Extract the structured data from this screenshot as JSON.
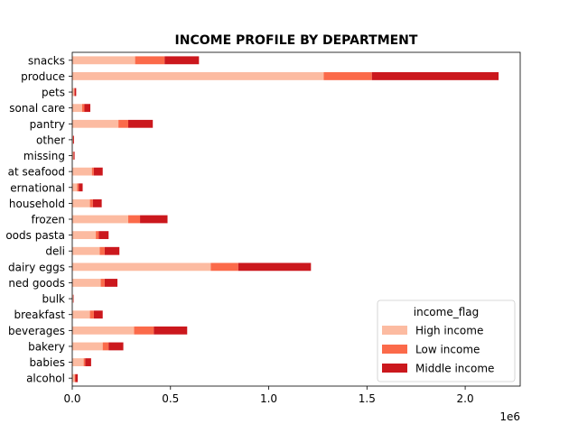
{
  "chart_data": {
    "type": "bar",
    "orientation": "horizontal",
    "stacked": true,
    "title": "INCOME PROFILE BY DEPARTMENT",
    "xlabel": "",
    "ylabel": "",
    "x_offset_label": "1e6",
    "xlim": [
      0,
      2.28
    ],
    "xticks": [
      0,
      0.5,
      1.0,
      1.5,
      2.0
    ],
    "xtick_labels": [
      "0.0",
      "0.5",
      "1.0",
      "1.5",
      "2.0"
    ],
    "grid": false,
    "legend": {
      "title": "income_flag",
      "position": "lower-right"
    },
    "categories": [
      "alcohol",
      "babies",
      "bakery",
      "beverages",
      "breakfast",
      "bulk",
      "canned goods",
      "dairy eggs",
      "deli",
      "dry goods pasta",
      "frozen",
      "household",
      "international",
      "meat seafood",
      "missing",
      "other",
      "pantry",
      "personal care",
      "pets",
      "produce",
      "snacks"
    ],
    "category_labels": [
      "alcohol",
      "babies",
      "bakery",
      "beverages",
      "breakfast",
      "bulk",
      "ned goods",
      "dairy eggs",
      "deli",
      "oods pasta",
      "frozen",
      "household",
      "ernational",
      "at seafood",
      "missing",
      "other",
      "pantry",
      "sonal care",
      "pets",
      "produce",
      "snacks"
    ],
    "series": [
      {
        "name": "High income",
        "color": "#fcbba1",
        "values": [
          0.012,
          0.058,
          0.155,
          0.315,
          0.09,
          0.004,
          0.145,
          0.705,
          0.14,
          0.12,
          0.285,
          0.09,
          0.025,
          0.1,
          0.006,
          0.004,
          0.235,
          0.05,
          0.01,
          1.28,
          0.32
        ]
      },
      {
        "name": "Low income",
        "color": "#fb6a4a",
        "values": [
          0.004,
          0.008,
          0.03,
          0.1,
          0.02,
          0.001,
          0.02,
          0.14,
          0.025,
          0.015,
          0.06,
          0.015,
          0.008,
          0.01,
          0.001,
          0.001,
          0.05,
          0.012,
          0.002,
          0.245,
          0.15
        ]
      },
      {
        "name": "Middle income",
        "color": "#cb181d",
        "values": [
          0.012,
          0.03,
          0.075,
          0.17,
          0.045,
          0.002,
          0.065,
          0.37,
          0.075,
          0.05,
          0.14,
          0.045,
          0.02,
          0.045,
          0.005,
          0.004,
          0.125,
          0.03,
          0.008,
          0.645,
          0.175
        ]
      }
    ]
  }
}
